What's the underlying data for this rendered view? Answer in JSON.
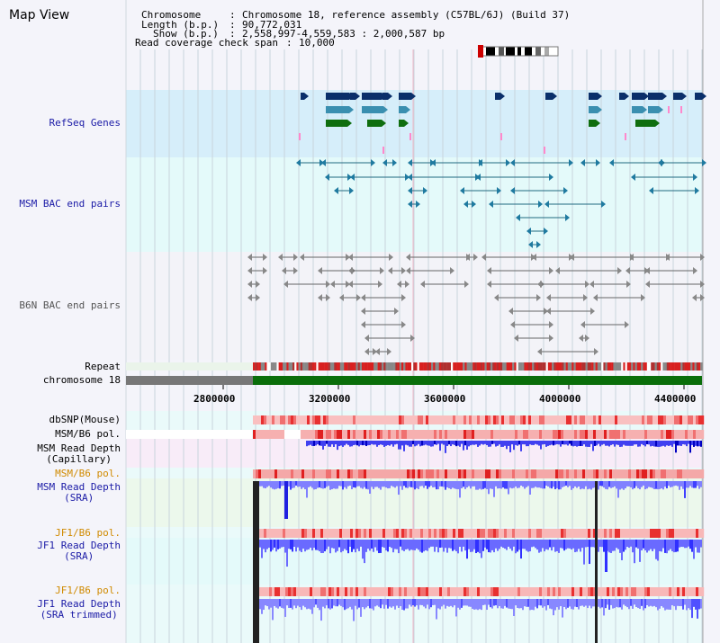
{
  "page": {
    "title": "Map View"
  },
  "info": {
    "chromosome_key": "Chromosome",
    "chromosome_val": "Chromosome 18, reference assembly (C57BL/6J) (Build 37)",
    "length_key": "Length (b.p.)",
    "length_val": "90,772,031",
    "show_key": "Show (b.p.)",
    "show_val": "2,558,997-4,559,583 : 2,000,587 bp",
    "span_key": "Read coverage check span",
    "span_val": "10,000"
  },
  "tracks": {
    "refseq": "RefSeq Genes",
    "msm_bac": "MSM BAC end pairs",
    "b6n_bac": "B6N BAC end pairs",
    "repeat": "Repeat",
    "chromosome": "chromosome 18",
    "dbsnp": "dbSNP(Mouse)",
    "msm_b6_pol_1": "MSM/B6 pol.",
    "msm_depth_cap_1": "MSM Read Depth",
    "msm_depth_cap_2": "(Capillary)",
    "msm_b6_pol_2": "MSM/B6 pol.",
    "msm_depth_sra_1": "MSM Read Depth",
    "msm_depth_sra_2": "(SRA)",
    "jf1_b6_pol_1": "JF1/B6 pol.",
    "jf1_depth_sra_1": "JF1 Read Depth",
    "jf1_depth_sra_2": "(SRA)",
    "jf1_b6_pol_2": "JF1/B6 pol.",
    "jf1_depth_trim_1": "JF1 Read Depth",
    "jf1_depth_trim_2": "(SRA trimmed)"
  },
  "axis": {
    "ticks": [
      "2800000",
      "3200000",
      "3600000",
      "4000000",
      "4400000"
    ]
  },
  "colors": {
    "refseq_bg": "#d6eefa",
    "msm_bac_bg": "#e4fafa",
    "b6n_bac_bg": "#f3f3f8",
    "gene_dark": "#0a2f6a",
    "gene_mid": "#3a8fb0",
    "gene_green": "#0f6e0f",
    "chrom_gray": "#777777",
    "chrom_green": "#0a6e0a",
    "depth_blue": "#2b2bff",
    "pol_red": "#e83030"
  }
}
